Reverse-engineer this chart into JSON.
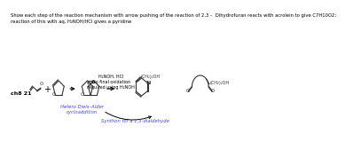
{
  "title_text": "Show each step of the reaction mechanism with arrow pushing of the reaction of 2,3 –  Dihydrofuran reacts with acrolein to give C7H10O2;",
  "title_line2": "reaction of this with aq. H₂NOH/HCl gives a pyridine",
  "label_ch8": "ch8 21",
  "label_hetero": "Hetero Diels–Alder\ncycloaddition",
  "label_reagent": "H₂NOH, HCl\nNo final oxidation\nrequired using H₂NOH",
  "label_synthon": "Synthon for a 1,5-dialdehyde",
  "label_ch2oh1": "(CH₂)₂OH",
  "label_ch2oh2": "(CH₂)₂OH",
  "bg_color": "#ffffff",
  "text_color": "#000000",
  "blue_color": "#4444cc",
  "arrow_color": "#000000",
  "structure_color": "#333333"
}
